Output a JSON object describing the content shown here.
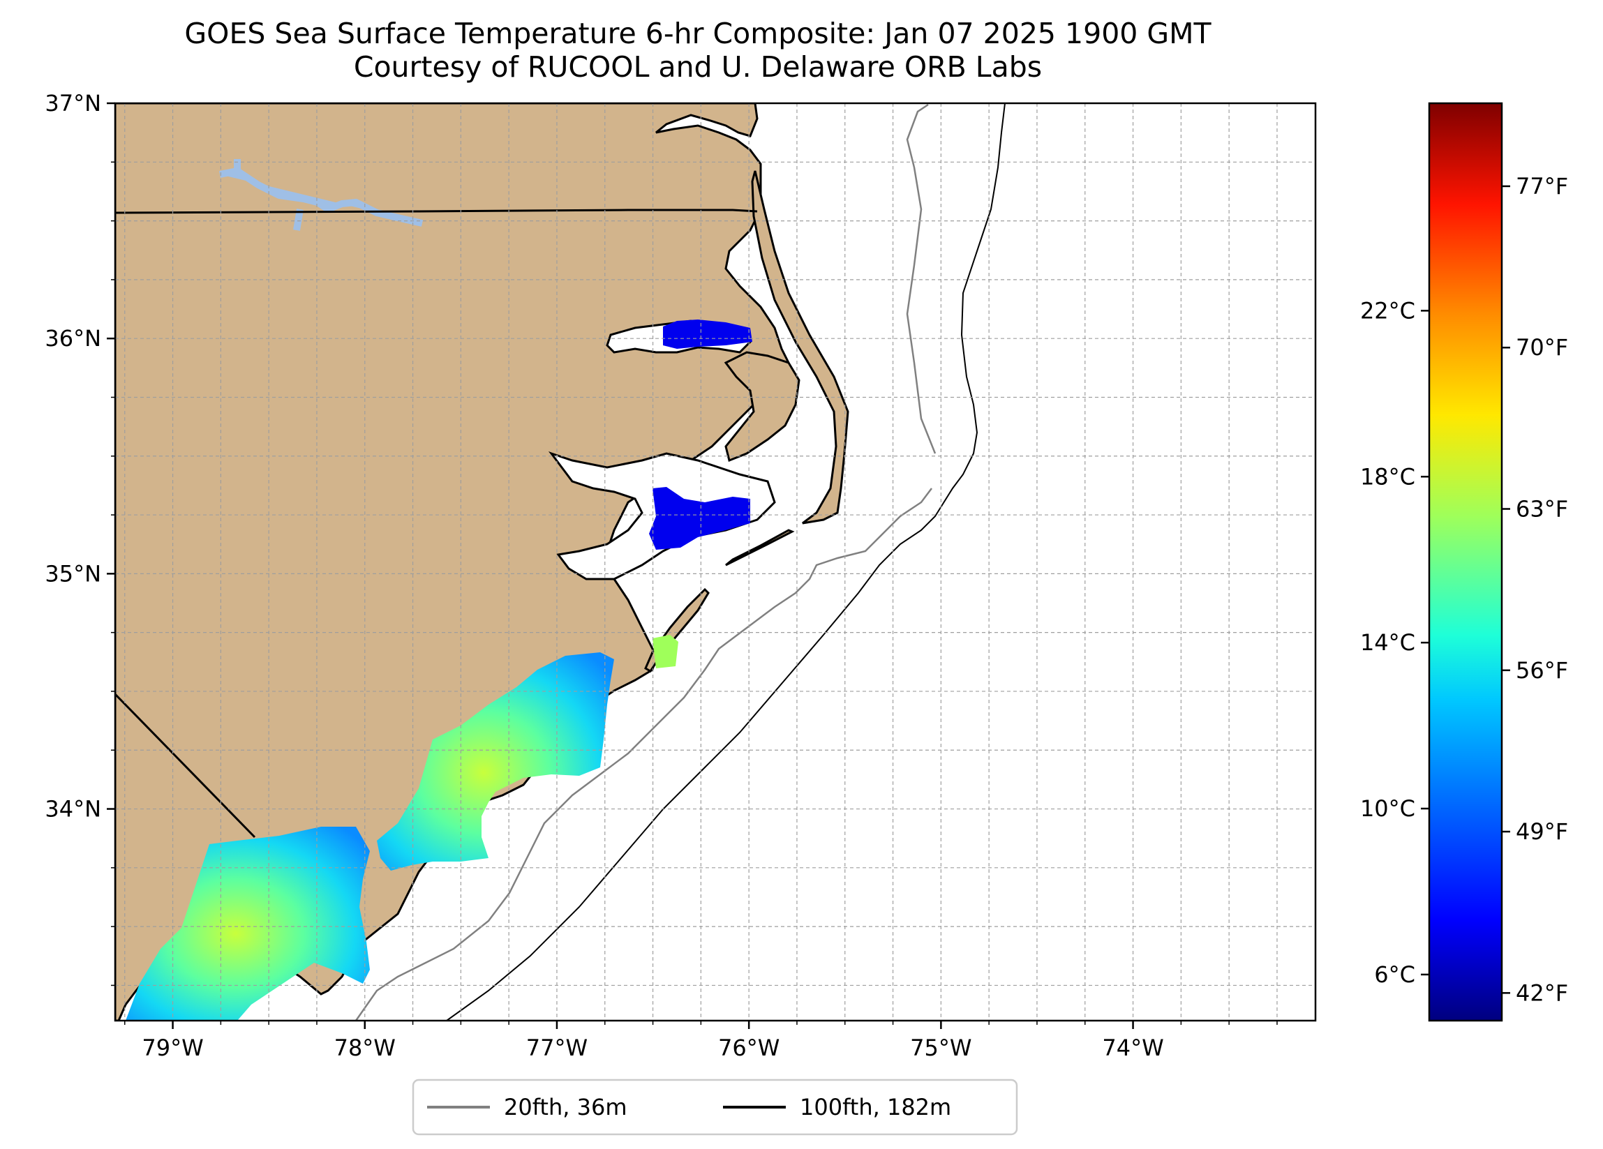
{
  "title": {
    "line1": "GOES Sea Surface Temperature 6-hr Composite: Jan 07 2025 1900 GMT",
    "line2": "Courtesy of RUCOOL and U. Delaware ORB Labs"
  },
  "map": {
    "lon_range": [
      -79.3,
      -73.05
    ],
    "lat_range": [
      33.1,
      37.0
    ],
    "lon_ticks": [
      {
        "value": -79,
        "label": "79°W"
      },
      {
        "value": -78,
        "label": "78°W"
      },
      {
        "value": -77,
        "label": "77°W"
      },
      {
        "value": -76,
        "label": "76°W"
      },
      {
        "value": -75,
        "label": "75°W"
      },
      {
        "value": -74,
        "label": "74°W"
      }
    ],
    "lat_ticks": [
      {
        "value": 37,
        "label": "37°N"
      },
      {
        "value": 36,
        "label": "36°N"
      },
      {
        "value": 35,
        "label": "35°N"
      },
      {
        "value": 34,
        "label": "34°N"
      }
    ],
    "gridlines": true,
    "land_color": "#d2b48c",
    "water_color": "#ffffff",
    "lake_color": "#9fbfe6"
  },
  "colorbar": {
    "celsius_ticks": [
      {
        "value": 6,
        "label": "6°C"
      },
      {
        "value": 10,
        "label": "10°C"
      },
      {
        "value": 14,
        "label": "14°C"
      },
      {
        "value": 18,
        "label": "18°C"
      },
      {
        "value": 22,
        "label": "22°C"
      }
    ],
    "fahrenheit_ticks": [
      {
        "value": 42,
        "label": "42°F"
      },
      {
        "value": 49,
        "label": "49°F"
      },
      {
        "value": 56,
        "label": "56°F"
      },
      {
        "value": 63,
        "label": "63°F"
      },
      {
        "value": 70,
        "label": "70°F"
      },
      {
        "value": 77,
        "label": "77°F"
      }
    ],
    "colormap": "jet"
  },
  "legend": {
    "items": [
      {
        "label": "20fth, 36m",
        "color": "#808080"
      },
      {
        "label": "100fth, 182m",
        "color": "#000000"
      }
    ],
    "placement": "bottom-center"
  }
}
